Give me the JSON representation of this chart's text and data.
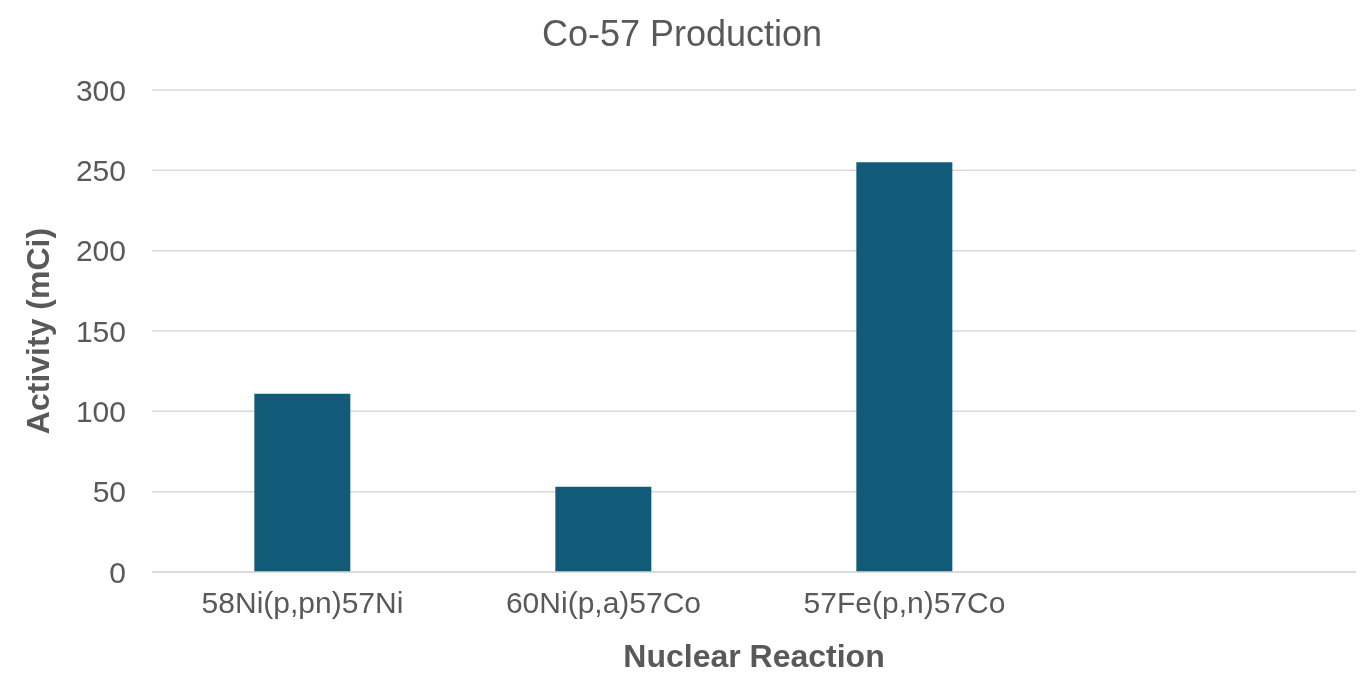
{
  "chart_data": {
    "type": "bar",
    "title": "Co-57 Production",
    "xlabel": "Nuclear Reaction",
    "ylabel": "Activity (mCi)",
    "categories": [
      "58Ni(p,pn)57Ni",
      "60Ni(p,a)57Co",
      "57Fe(p,n)57Co",
      null
    ],
    "values": [
      111,
      53,
      255,
      null
    ],
    "color": "#115a78",
    "ylim": [
      0,
      300
    ],
    "yticks": [
      0,
      50,
      100,
      150,
      200,
      250,
      300
    ],
    "grid": "y"
  }
}
